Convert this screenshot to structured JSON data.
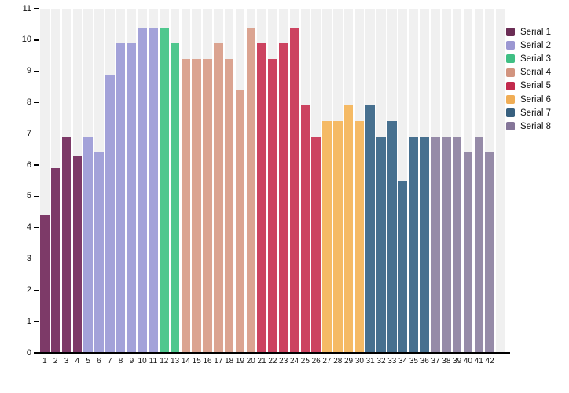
{
  "chart_data": {
    "type": "bar",
    "title": "",
    "xlabel": "",
    "ylabel": "",
    "ylim": [
      0,
      11
    ],
    "y_ticks": [
      0,
      1,
      2,
      3,
      4,
      5,
      6,
      7,
      8,
      9,
      10,
      11
    ],
    "categories": [
      "1",
      "2",
      "3",
      "4",
      "5",
      "6",
      "7",
      "8",
      "9",
      "10",
      "11",
      "12",
      "13",
      "14",
      "15",
      "16",
      "17",
      "18",
      "19",
      "20",
      "21",
      "22",
      "23",
      "24",
      "25",
      "26",
      "27",
      "28",
      "29",
      "30",
      "31",
      "32",
      "33",
      "34",
      "35",
      "36",
      "37",
      "38",
      "39",
      "40",
      "41",
      "42"
    ],
    "grid": "vertical light-gray column stripes behind bars",
    "legend_position": "right",
    "series": [
      {
        "name": "Serial 1",
        "bar_color": "#7d3a68",
        "legend_color": "#6b2d55",
        "categories": [
          "1",
          "2",
          "3",
          "4"
        ],
        "values": [
          4.4,
          5.9,
          6.9,
          6.3
        ]
      },
      {
        "name": "Serial 2",
        "bar_color": "#a3a2d9",
        "legend_color": "#9b97d2",
        "categories": [
          "5",
          "6",
          "7",
          "8",
          "9",
          "10",
          "11"
        ],
        "values": [
          6.9,
          6.4,
          8.9,
          9.9,
          9.9,
          10.4,
          10.4
        ]
      },
      {
        "name": "Serial 3",
        "bar_color": "#4fc78e",
        "legend_color": "#3fbf84",
        "categories": [
          "12",
          "13"
        ],
        "values": [
          10.4,
          9.9
        ]
      },
      {
        "name": "Serial 4",
        "bar_color": "#dba491",
        "legend_color": "#d2947f",
        "categories": [
          "14",
          "15",
          "16",
          "17",
          "18",
          "19",
          "20"
        ],
        "values": [
          9.4,
          9.4,
          9.4,
          9.9,
          9.4,
          8.4,
          10.4
        ]
      },
      {
        "name": "Serial 5",
        "bar_color": "#cc4360",
        "legend_color": "#c22a4d",
        "categories": [
          "21",
          "22",
          "23",
          "24",
          "25",
          "26"
        ],
        "values": [
          9.9,
          9.4,
          9.9,
          10.4,
          7.9,
          6.9
        ]
      },
      {
        "name": "Serial 6",
        "bar_color": "#f5ba65",
        "legend_color": "#f0ad55",
        "categories": [
          "27",
          "28",
          "29",
          "30"
        ],
        "values": [
          7.4,
          7.4,
          7.9,
          7.4
        ]
      },
      {
        "name": "Serial 7",
        "bar_color": "#47708f",
        "legend_color": "#38607f",
        "categories": [
          "31",
          "32",
          "33",
          "34",
          "35",
          "36"
        ],
        "values": [
          7.9,
          6.9,
          7.4,
          5.5,
          6.9,
          6.9
        ]
      },
      {
        "name": "Serial 8",
        "bar_color": "#968ba8",
        "legend_color": "#857699",
        "categories": [
          "37",
          "38",
          "39",
          "40",
          "41",
          "42"
        ],
        "values": [
          6.9,
          6.9,
          6.9,
          6.4,
          6.9,
          6.4
        ]
      }
    ],
    "style": {
      "stripe_color": "#f0f0f0",
      "axis_color": "#000000",
      "tick_text_color": "#111111"
    }
  }
}
